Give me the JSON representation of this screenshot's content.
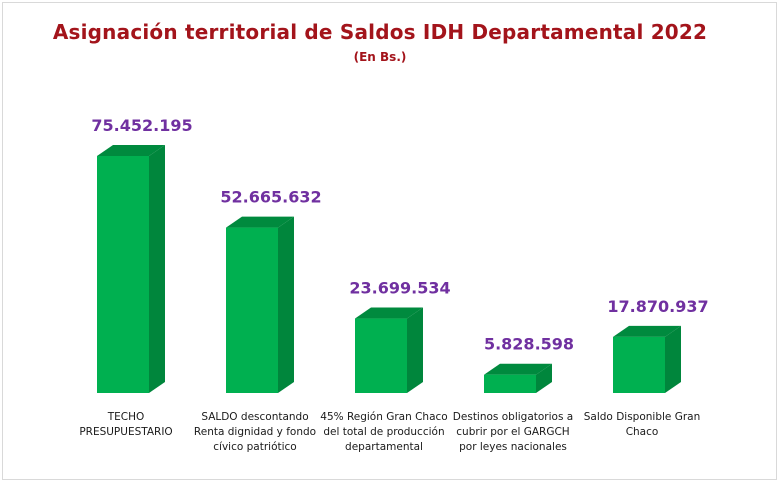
{
  "chart_data": {
    "type": "bar",
    "title": "Asignación territorial de Saldos IDH Departamental 2022",
    "subtitle": "(En Bs.)",
    "categories": [
      "TECHO PRESUPUESTARIO",
      "SALDO descontando Renta dignidad y fondo cívico patriótico",
      "45% Región Gran Chaco del total de producción departamental",
      "Destinos obligatorios a cubrir por el GARGCH por leyes nacionales",
      "Saldo Disponible Gran Chaco"
    ],
    "values": [
      75452195,
      52665632,
      23699534,
      5828598,
      17870937
    ],
    "data_labels": [
      "75.452.195",
      "52.665.632",
      "23.699.534",
      "5.828.598",
      "17.870.937"
    ],
    "ylim": [
      0,
      80000000
    ],
    "grid": false,
    "legend": "none",
    "colors": {
      "bar_front": "#00b050",
      "bar_side": "#00863c",
      "bar_top": "#008a3e",
      "title": "#a3141b",
      "data_label": "#7030a0"
    }
  }
}
